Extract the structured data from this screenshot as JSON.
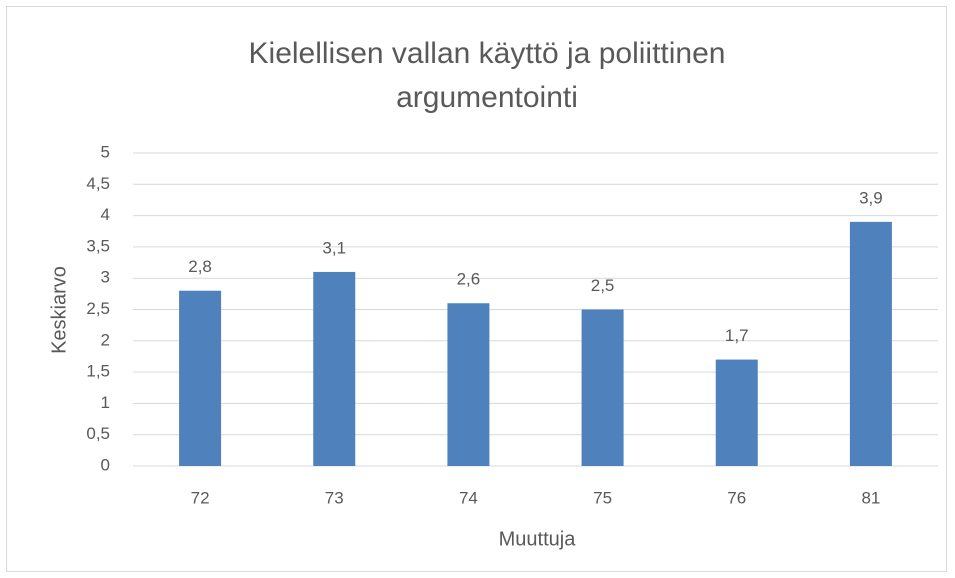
{
  "chart_data": {
    "type": "bar",
    "title": "Kielellisen vallan käyttö ja poliittinen argumentointi",
    "xlabel": "Muuttuja",
    "ylabel": "Keskiarvo",
    "categories": [
      "72",
      "73",
      "74",
      "75",
      "76",
      "81"
    ],
    "values": [
      2.8,
      3.1,
      2.6,
      2.5,
      1.7,
      3.9
    ],
    "value_labels": [
      "2,8",
      "3,1",
      "2,6",
      "2,5",
      "1,7",
      "3,9"
    ],
    "color": "#4f81bd",
    "ylim": [
      0,
      5
    ],
    "yticks": [
      0,
      {
        "value": 0.5,
        "label": "0,5"
      },
      1,
      {
        "value": 1.5,
        "label": "1,5"
      },
      2,
      {
        "value": 2.5,
        "label": "2,5"
      },
      3,
      {
        "value": 3.5,
        "label": "3,5"
      },
      4,
      {
        "value": 4.5,
        "label": "4,5"
      },
      5
    ],
    "grid": true
  }
}
